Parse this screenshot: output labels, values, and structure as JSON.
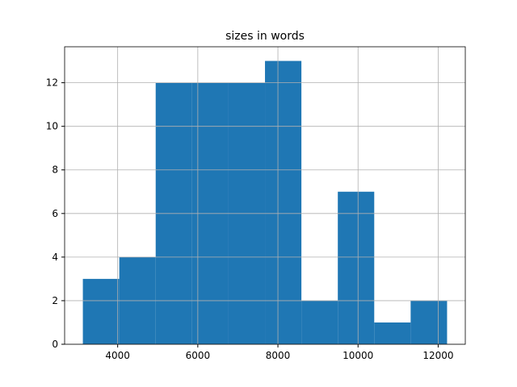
{
  "chart_data": {
    "type": "histogram",
    "title": "sizes in words",
    "bins": [
      3131,
      4040,
      4949,
      5858,
      6768,
      7677,
      8586,
      9495,
      10404,
      11313,
      12222
    ],
    "values": [
      3,
      4,
      12,
      12,
      12,
      13,
      2,
      7,
      1,
      2
    ],
    "color": "#1f77b4",
    "xlim": [
      2676,
      12677
    ],
    "xticks": [
      4000,
      6000,
      8000,
      10000,
      12000
    ],
    "ylim": [
      0,
      13.65
    ],
    "yticks": [
      0,
      2,
      4,
      6,
      8,
      10,
      12
    ],
    "grid": true
  }
}
